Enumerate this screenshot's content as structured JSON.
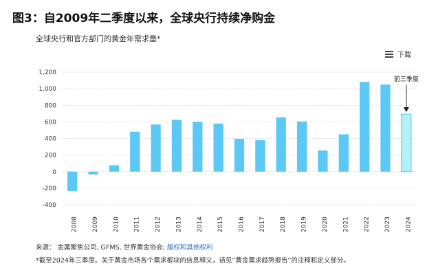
{
  "title": "图3：自2009年二季度以来，全球央行持续净购金",
  "subtitle": "全球央行和官方部门的黄金年需求量*",
  "download_label": "下载",
  "footer": {
    "source_prefix": "来源：  金属聚焦公司, GFMS, 世界黄金协会; ",
    "source_link": "版权和其他权利",
    "note": "*截至2024年三季度。关于黄金市场各个需求板块的信息释义，请见“黄金需求趋势报告”的注释和定义部分。"
  },
  "chart_data": {
    "type": "bar",
    "categories": [
      "2008",
      "2009",
      "2010",
      "2011",
      "2012",
      "2013",
      "2014",
      "2015",
      "2016",
      "2017",
      "2018",
      "2019",
      "2020",
      "2021",
      "2022",
      "2023",
      "2024"
    ],
    "values": [
      -235,
      -34,
      77,
      481,
      569,
      625,
      601,
      580,
      395,
      379,
      656,
      605,
      255,
      450,
      1082,
      1050,
      694
    ],
    "ylim": [
      -400,
      1200
    ],
    "yticks": [
      -400,
      -200,
      0,
      200,
      400,
      600,
      800,
      1000,
      1200
    ],
    "ytick_labels": [
      "-400",
      "-200",
      "0",
      "200",
      "400",
      "600",
      "800",
      "1,000",
      "1,200"
    ],
    "grid": true,
    "colors": {
      "bar": "#5bc8f5",
      "highlight_bar": "#b3f0f7",
      "highlight_border": "#5bc8f5"
    },
    "highlight_index": 16,
    "annotation": {
      "text": "前三季度",
      "category": "2024"
    }
  }
}
